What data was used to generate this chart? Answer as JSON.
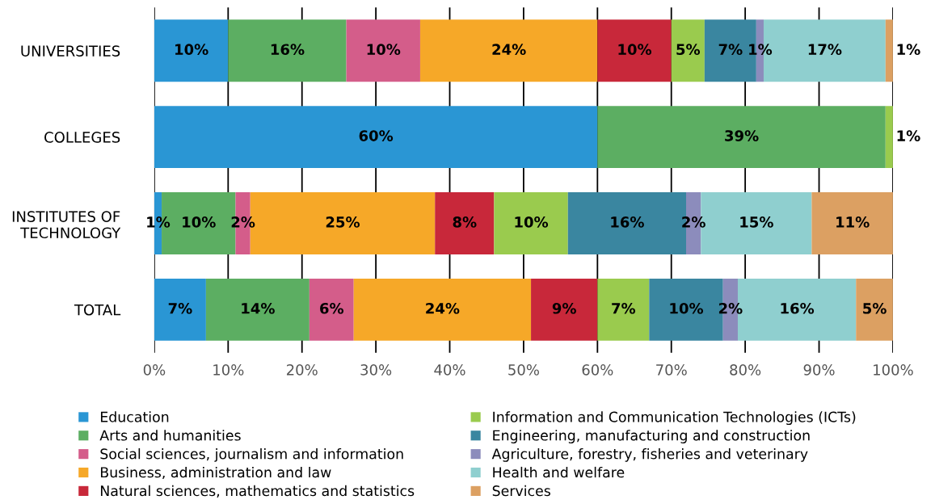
{
  "chart_data": {
    "type": "bar",
    "orientation": "horizontal",
    "stacked": true,
    "categories": [
      "UNIVERSITIES",
      "COLLEGES",
      "INSTITUTES OF\nTECHNOLOGY",
      "TOTAL"
    ],
    "series": [
      {
        "name": "Education",
        "color": "#2a96d4",
        "values": [
          10,
          60,
          1,
          7
        ],
        "value_labels": [
          "10%",
          "60%",
          "1%",
          "7%"
        ]
      },
      {
        "name": "Arts and humanities",
        "color": "#5cae62",
        "values": [
          16,
          39,
          10,
          14
        ],
        "value_labels": [
          "16%",
          "39%",
          "10%",
          "14%"
        ]
      },
      {
        "name": "Social sciences, journalism and information",
        "color": "#d45d8a",
        "values": [
          10,
          null,
          2,
          6
        ],
        "value_labels": [
          "10%",
          null,
          "2%",
          "6%"
        ]
      },
      {
        "name": "Business, administration and law",
        "color": "#f6a828",
        "values": [
          24,
          null,
          25,
          24
        ],
        "value_labels": [
          "24%",
          null,
          "25%",
          "24%"
        ]
      },
      {
        "name": "Natural sciences, mathematics and statistics",
        "color": "#c8283a",
        "values": [
          10,
          null,
          8,
          9
        ],
        "value_labels": [
          "10%",
          null,
          "8%",
          "9%"
        ]
      },
      {
        "name": "Information and Communication Technologies (ICTs)",
        "color": "#9acb4e",
        "values": [
          4.5,
          1,
          10,
          7
        ],
        "value_labels": [
          "5%",
          "1%",
          "10%",
          "7%"
        ]
      },
      {
        "name": "Engineering, manufacturing and construction",
        "color": "#3a86a0",
        "values": [
          7,
          null,
          16,
          10
        ],
        "value_labels": [
          "7%",
          null,
          "16%",
          "10%"
        ]
      },
      {
        "name": "Agriculture, forestry, fisheries and veterinary",
        "color": "#8c8cbc",
        "values": [
          1,
          null,
          2,
          2
        ],
        "value_labels": [
          "1%",
          null,
          "2%",
          "2%"
        ]
      },
      {
        "name": "Health and welfare",
        "color": "#8fcfcf",
        "values": [
          16.5,
          null,
          15,
          16
        ],
        "value_labels": [
          "17%",
          null,
          "15%",
          "16%"
        ]
      },
      {
        "name": "Services",
        "color": "#dca062",
        "values": [
          1,
          null,
          11,
          5
        ],
        "value_labels": [
          "1%",
          null,
          "11%",
          "5%"
        ]
      }
    ],
    "xlim": [
      0,
      100
    ],
    "xticks": [
      {
        "value": 0,
        "label": "0%"
      },
      {
        "value": 10,
        "label": "10%"
      },
      {
        "value": 20,
        "label": "20%"
      },
      {
        "value": 30,
        "label": "30%"
      },
      {
        "value": 40,
        "label": "40%"
      },
      {
        "value": 50,
        "label": "50%"
      },
      {
        "value": 60,
        "label": "60%"
      },
      {
        "value": 70,
        "label": "70%"
      },
      {
        "value": 80,
        "label": "80%"
      },
      {
        "value": 90,
        "label": "90%"
      },
      {
        "value": 100,
        "label": "100%"
      }
    ],
    "grid": "x",
    "legend": "bottom"
  }
}
